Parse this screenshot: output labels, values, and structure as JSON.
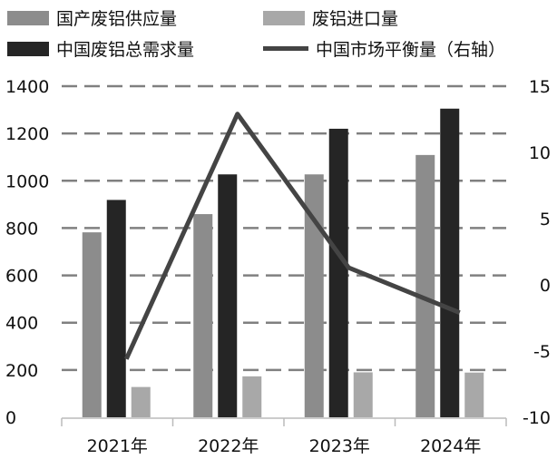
{
  "chart_data": {
    "type": "bar",
    "categories": [
      "2021年",
      "2022年",
      "2023年",
      "2024年"
    ],
    "series": [
      {
        "name": "国产废铝供应量",
        "type": "bar",
        "axis": "left",
        "color": "#8c8c8c",
        "values": [
          782,
          859,
          1027,
          1109
        ]
      },
      {
        "name": "中国废铝总需求量",
        "type": "bar",
        "axis": "left",
        "color": "#252525",
        "values": [
          919,
          1027,
          1220,
          1305
        ]
      },
      {
        "name": "废铝进口量",
        "type": "bar",
        "axis": "left",
        "color": "#a8a8a8",
        "values": [
          128,
          173,
          190,
          189
        ]
      },
      {
        "name": "中国市场平衡量（右轴）",
        "type": "line",
        "axis": "right",
        "color": "#444444",
        "values": [
          -5.6,
          12.9,
          1.3,
          -2.1
        ]
      }
    ],
    "left_axis": {
      "ylim": [
        0,
        1400
      ],
      "ticks": [
        "0",
        "200",
        "400",
        "600",
        "800",
        "1000",
        "1200",
        "1400"
      ]
    },
    "right_axis": {
      "ylim": [
        -10,
        15
      ],
      "ticks": [
        "-10",
        "-5",
        "0",
        "5",
        "10",
        "15"
      ]
    },
    "grid": true,
    "legend_placement": "top",
    "title": "",
    "xlabel": "",
    "ylabel": ""
  }
}
